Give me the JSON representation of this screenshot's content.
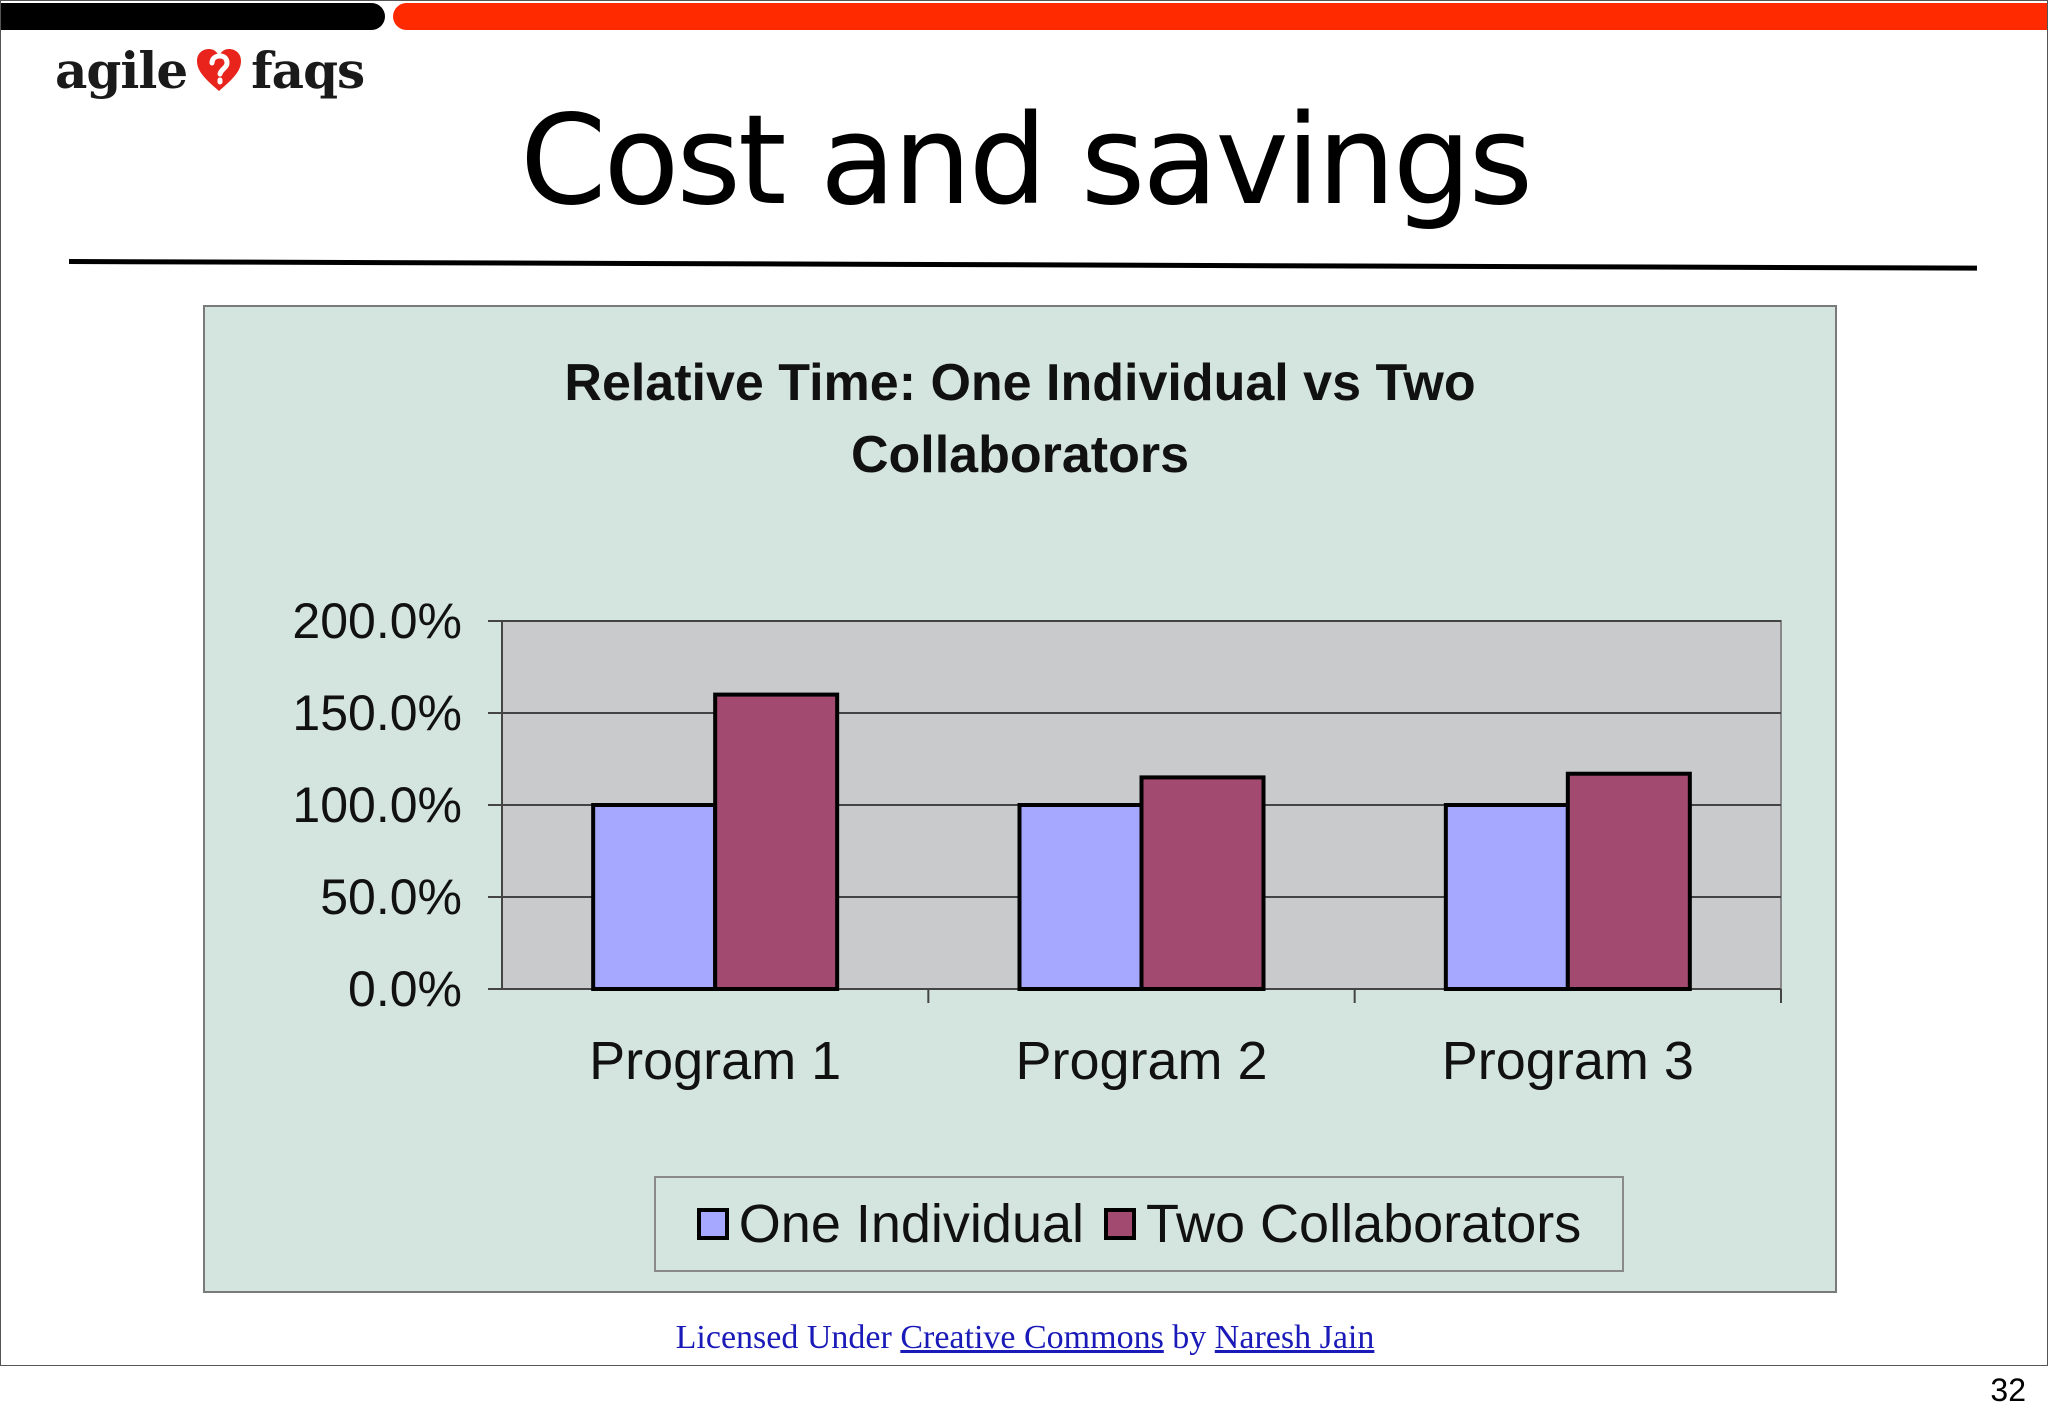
{
  "header": {
    "logo_left": "agile",
    "logo_right": "faqs",
    "title": "Cost and savings"
  },
  "chart_data": {
    "type": "bar",
    "title_line1": "Relative Time:  One Individual vs Two",
    "title_line2": "Collaborators",
    "categories": [
      "Program 1",
      "Program 2",
      "Program 3"
    ],
    "series": [
      {
        "name": "One Individual",
        "values": [
          100,
          100,
          100
        ],
        "color": "#a6a8ff"
      },
      {
        "name": "Two Collaborators",
        "values": [
          160,
          115,
          117
        ],
        "color": "#a24a70"
      }
    ],
    "ylim": [
      0,
      200
    ],
    "yticks": [
      "0.0%",
      "50.0%",
      "100.0%",
      "150.0%",
      "200.0%"
    ],
    "ytick_values": [
      0,
      50,
      100,
      150,
      200
    ],
    "grid": true,
    "legend_position": "bottom",
    "plot_background": "#c9cacb",
    "chart_background": "#d4e4df"
  },
  "footer": {
    "licensed_prefix": "Licensed Under",
    "license_link": "Creative Commons",
    "by": "by",
    "author_link": "Naresh Jain",
    "page_number": "32"
  }
}
